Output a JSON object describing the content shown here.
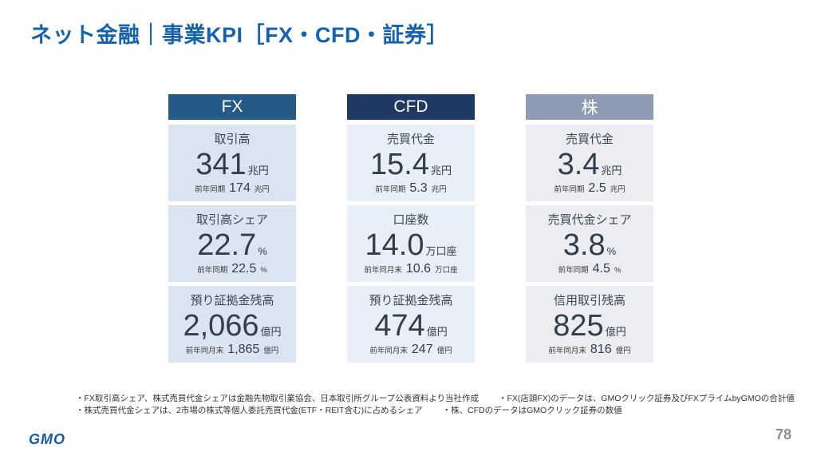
{
  "title": "ネット金融｜事業KPI［FX・CFD・証券］",
  "colors": {
    "title_blue": "#1463ac",
    "fx_header": "#265a86",
    "cfd_header": "#1f3864",
    "kabu_header": "#8d9cb3",
    "fx_box_bg": "#dbe5f2",
    "cfd_box_bg": "#e9eff8",
    "kabu_box_bg": "#ecedf1",
    "value_text": "#343d4a",
    "logo_blue": "#1859a8",
    "page_gray": "#8f8f8f"
  },
  "columns": [
    {
      "header": "FX",
      "header_color": "#265a86",
      "box_bg": "#dbe5f2",
      "metrics": [
        {
          "label": "取引高",
          "value": "341",
          "unit": "兆円",
          "prev_label": "前年同期",
          "prev_value": "174",
          "prev_unit": "兆円"
        },
        {
          "label": "取引高シェア",
          "value": "22.7",
          "unit": "%",
          "prev_label": "前年同期",
          "prev_value": "22.5",
          "prev_unit": "%"
        },
        {
          "label": "預り証拠金残高",
          "value": "2,066",
          "unit": "億円",
          "prev_label": "前年同月末",
          "prev_value": "1,865",
          "prev_unit": "億円"
        }
      ]
    },
    {
      "header": "CFD",
      "header_color": "#1f3864",
      "box_bg": "#e9eff8",
      "metrics": [
        {
          "label": "売買代金",
          "value": "15.4",
          "unit": "兆円",
          "prev_label": "前年同期",
          "prev_value": "5.3",
          "prev_unit": "兆円"
        },
        {
          "label": "口座数",
          "value": "14.0",
          "unit": "万口座",
          "prev_label": "前年同月末",
          "prev_value": "10.6",
          "prev_unit": "万口座"
        },
        {
          "label": "預り証拠金残高",
          "value": "474",
          "unit": "億円",
          "prev_label": "前年同月末",
          "prev_value": "247",
          "prev_unit": "億円"
        }
      ]
    },
    {
      "header": "株",
      "header_color": "#8d9cb3",
      "box_bg": "#ecedf1",
      "metrics": [
        {
          "label": "売買代金",
          "value": "3.4",
          "unit": "兆円",
          "prev_label": "前年同期",
          "prev_value": "2.5",
          "prev_unit": "兆円"
        },
        {
          "label": "売買代金シェア",
          "value": "3.8",
          "unit": "%",
          "prev_label": "前年同期",
          "prev_value": "4.5",
          "prev_unit": "%"
        },
        {
          "label": "信用取引残高",
          "value": "825",
          "unit": "億円",
          "prev_label": "前年同月末",
          "prev_value": "816",
          "prev_unit": "億円"
        }
      ]
    }
  ],
  "footnotes": {
    "line1a": "・FX取引高シェア、株式売買代金シェアは金融先物取引業協会、日本取引所グループ公表資料より当社作成",
    "line1b": "・FX(店頭FX)のデータは、GMOクリック証券及びFXプライムbyGMOの合計値",
    "line2a": "・株式売買代金シェアは、2市場の株式等個人委託売買代金(ETF・REIT含む)に占めるシェア",
    "line2b": "・株、CFDのデータはGMOクリック証券の数値"
  },
  "footer": {
    "logo": "GMO",
    "page": "78"
  }
}
